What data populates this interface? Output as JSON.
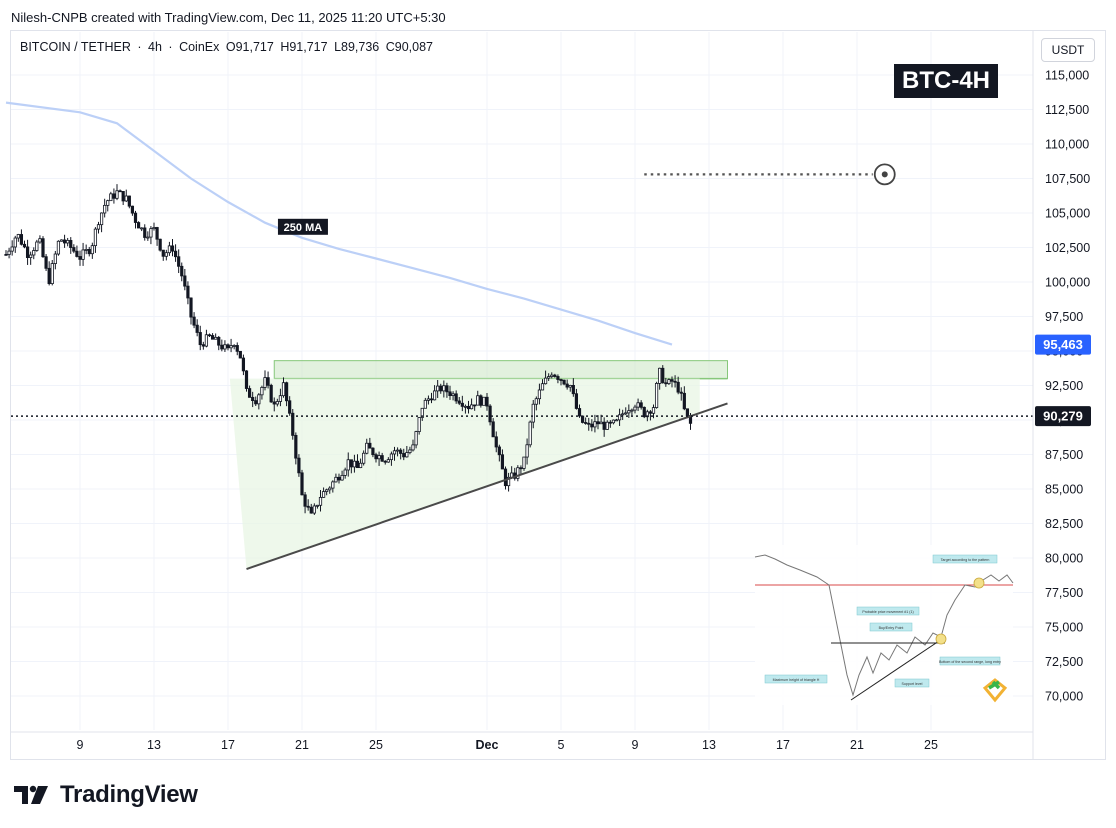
{
  "header": {
    "attribution": "Nilesh-CNPB created with TradingView.com, Dec 11, 2025 11:20 UTC+5:30"
  },
  "symbol": {
    "pair": "BITCOIN / TETHER",
    "interval": "4h",
    "exchange": "CoinEx",
    "open": "O91,717",
    "high": "H91,717",
    "low": "L89,736",
    "close": "C90,087"
  },
  "currency_button": "USDT",
  "title_badge": "BTC-4H",
  "ma_label": "250 MA",
  "price_tags": {
    "ma": "95,463",
    "last": "90,279"
  },
  "brand": "TradingView",
  "colors": {
    "candle": "#131722",
    "ma": "#bcd0f7",
    "ma_tag": "#2962ff",
    "zone": "#e8f5e4",
    "zone_line": "#86c77a",
    "trend": "#4a4a4a"
  },
  "chart_data": {
    "type": "candlestick",
    "symbol": "BITCOIN / TETHER",
    "timeframe": "4h",
    "yaxis": {
      "range": [
        68000,
        116500
      ],
      "ticks": [
        115000,
        112500,
        110000,
        107500,
        105000,
        102500,
        100000,
        97500,
        95000,
        92500,
        90000,
        87500,
        85000,
        82500,
        80000,
        77500,
        75000,
        72500,
        70000
      ],
      "tick_labels": [
        "115,000",
        "112,500",
        "110,000",
        "107,500",
        "105,000",
        "102,500",
        "100,000",
        "97,500",
        "95,000",
        "92,500",
        "90,000",
        "87,500",
        "85,000",
        "82,500",
        "80,000",
        "77,500",
        "75,000",
        "72,500",
        "70,000"
      ]
    },
    "xaxis": {
      "ticks": [
        "9",
        "13",
        "17",
        "21",
        "25",
        "Dec",
        "5",
        "9",
        "13",
        "17",
        "21",
        "25"
      ],
      "tick_days": [
        9,
        13,
        17,
        21,
        25,
        31,
        35,
        39,
        43,
        47,
        51,
        55
      ]
    },
    "price_path": [
      [
        5,
        102000
      ],
      [
        5.6,
        103500
      ],
      [
        6.2,
        102000
      ],
      [
        6.8,
        103000
      ],
      [
        7.3,
        100000
      ],
      [
        7.9,
        103200
      ],
      [
        8.5,
        102500
      ],
      [
        9,
        101800
      ],
      [
        9.6,
        102500
      ],
      [
        10,
        104500
      ],
      [
        10.4,
        105800
      ],
      [
        11,
        106500
      ],
      [
        11.5,
        106000
      ],
      [
        12,
        104500
      ],
      [
        12.5,
        103500
      ],
      [
        13,
        103800
      ],
      [
        13.5,
        102000
      ],
      [
        14,
        102500
      ],
      [
        14.5,
        100500
      ],
      [
        15,
        97500
      ],
      [
        15.5,
        95500
      ],
      [
        16,
        96000
      ],
      [
        16.5,
        95500
      ],
      [
        17,
        95000
      ],
      [
        17.3,
        95800
      ],
      [
        17.7,
        94500
      ],
      [
        18,
        92000
      ],
      [
        18.5,
        91500
      ],
      [
        19,
        92800
      ],
      [
        19.5,
        91000
      ],
      [
        20,
        92500
      ],
      [
        20.5,
        89000
      ],
      [
        21,
        84500
      ],
      [
        21.5,
        83000
      ],
      [
        22,
        84500
      ],
      [
        22.5,
        85200
      ],
      [
        23,
        86000
      ],
      [
        23.5,
        87000
      ],
      [
        24,
        86500
      ],
      [
        24.5,
        88000
      ],
      [
        25,
        87500
      ],
      [
        25.5,
        87200
      ],
      [
        26,
        87800
      ],
      [
        26.5,
        87500
      ],
      [
        27,
        88000
      ],
      [
        27.5,
        91000
      ],
      [
        28,
        91800
      ],
      [
        28.5,
        92300
      ],
      [
        29,
        92000
      ],
      [
        29.5,
        91500
      ],
      [
        30,
        91000
      ],
      [
        30.5,
        91500
      ],
      [
        31,
        91200
      ],
      [
        31.5,
        88000
      ],
      [
        32,
        85500
      ],
      [
        32.5,
        86000
      ],
      [
        33,
        87000
      ],
      [
        33.5,
        91000
      ],
      [
        34,
        92500
      ],
      [
        34.5,
        93500
      ],
      [
        35,
        93000
      ],
      [
        35.5,
        92500
      ],
      [
        36,
        90000
      ],
      [
        36.5,
        89500
      ],
      [
        37,
        89800
      ],
      [
        37.5,
        89500
      ],
      [
        38,
        89800
      ],
      [
        38.5,
        90800
      ],
      [
        39,
        91200
      ],
      [
        39.5,
        90500
      ],
      [
        40,
        91000
      ],
      [
        40.3,
        93500
      ],
      [
        40.7,
        92500
      ],
      [
        41,
        92800
      ],
      [
        41.4,
        92200
      ],
      [
        41.7,
        90500
      ],
      [
        42,
        89700
      ]
    ],
    "moving_average_250": {
      "label": "250 MA",
      "points": [
        [
          5,
          113000
        ],
        [
          9,
          112300
        ],
        [
          11,
          111500
        ],
        [
          13,
          109500
        ],
        [
          15,
          107500
        ],
        [
          17,
          105800
        ],
        [
          19,
          104300
        ],
        [
          21,
          103200
        ],
        [
          23,
          102400
        ],
        [
          25,
          101700
        ],
        [
          27,
          101000
        ],
        [
          29,
          100300
        ],
        [
          31,
          99500
        ],
        [
          33,
          98800
        ],
        [
          35,
          98000
        ],
        [
          37,
          97200
        ],
        [
          39,
          96300
        ],
        [
          41,
          95463
        ]
      ],
      "last_value": 95463
    },
    "resistance_zone": {
      "low": 93000,
      "high": 94300,
      "from_day": 19.5,
      "to_day": 44
    },
    "ascending_trendline": {
      "start": [
        18,
        79200
      ],
      "end": [
        44,
        91200
      ]
    },
    "last_price": 90279,
    "target_marker": {
      "day": 52.5,
      "price": 107800,
      "dotted_from_day": 39.5
    },
    "inset_reference_pattern": {
      "description_labels": [
        "Target according to the pattern",
        "Probable price movement #1 (1)",
        "Buy/Entry Point",
        "Bottom of the second range, long entry",
        "Maximum height of triangle H",
        "Support level"
      ],
      "reference_line": 78000
    }
  }
}
